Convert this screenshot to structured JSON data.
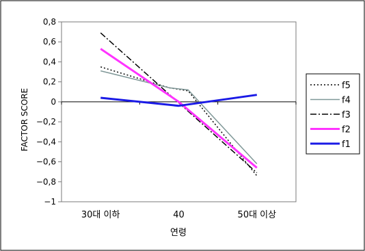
{
  "chart_data": {
    "type": "line",
    "categories": [
      "30대 이하",
      "40",
      "50대 이상"
    ],
    "xlabel": "연령",
    "ylabel": "FACTOR SCORE",
    "ylim": [
      -1,
      0.8
    ],
    "yticks": [
      0.8,
      0.6,
      0.4,
      0.2,
      0,
      -0.2,
      -0.4,
      -0.6,
      -0.8,
      -1
    ],
    "ytick_labels": [
      "0,8",
      "0,6",
      "0,4",
      "0,2",
      "0",
      "−0,2",
      "−0,4",
      "−0,6",
      "−0,8",
      "−1"
    ],
    "grid": false,
    "legend": "right",
    "series": [
      {
        "name": "f5",
        "x": [
          0,
          0.88,
          1.12,
          2
        ],
        "values": [
          0.35,
          0.14,
          0.11,
          -0.74
        ],
        "color": "#000000",
        "dash": "dotted"
      },
      {
        "name": "f4",
        "x": [
          0,
          0.88,
          1.12,
          2
        ],
        "values": [
          0.31,
          0.14,
          0.12,
          -0.62
        ],
        "color": "#7f9797",
        "dash": "solid"
      },
      {
        "name": "f3",
        "x": [
          0,
          2
        ],
        "values": [
          0.69,
          -0.71
        ],
        "color": "#000000",
        "dash": "dashdot"
      },
      {
        "name": "f2",
        "x": [
          0,
          1,
          2
        ],
        "values": [
          0.53,
          0.0,
          -0.66
        ],
        "color": "#ff33ff",
        "dash": "solid"
      },
      {
        "name": "f1",
        "x": [
          0,
          1,
          2
        ],
        "values": [
          0.04,
          -0.04,
          0.07
        ],
        "color": "#1a1ae6",
        "dash": "solid"
      }
    ]
  }
}
